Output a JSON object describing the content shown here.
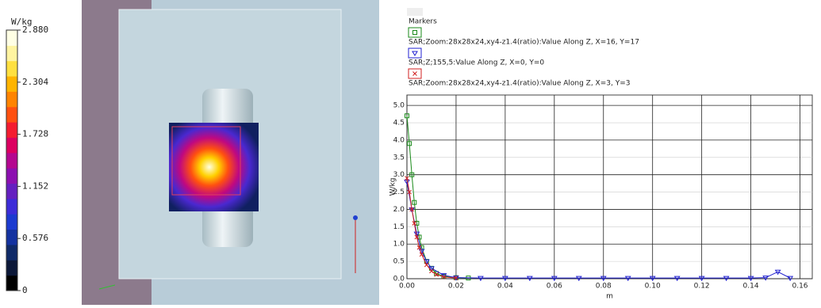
{
  "chart_data": [
    {
      "type": "colorbar",
      "unit": "W/kg",
      "ylim": [
        0,
        2.88
      ],
      "yticks": [
        0,
        {
          "value": 0.576,
          "label": "0.576"
        },
        {
          "value": 1.152,
          "label": "1.152"
        },
        {
          "value": 1.728,
          "label": "1.728"
        },
        {
          "value": 2.304,
          "label": "2.304"
        },
        {
          "value": 2.88,
          "label": "2.880"
        }
      ],
      "colors": [
        "#000000",
        "#0c1838",
        "#102a68",
        "#1432a0",
        "#1c3ad0",
        "#3c2cd8",
        "#6420c0",
        "#8c10b0",
        "#b40890",
        "#dc0060",
        "#f41c30",
        "#ff5010",
        "#ff8400",
        "#ffb400",
        "#ffe040",
        "#fff4a0",
        "#ffffe4"
      ]
    },
    {
      "type": "line",
      "legend_title": "Markers",
      "xlabel": "m",
      "ylabel": "W/kg",
      "grid": true,
      "xlim": [
        0,
        0.165
      ],
      "ylim": [
        0,
        5.3
      ],
      "xticks": [
        {
          "value": 0,
          "label": "0.00"
        },
        {
          "value": 0.02,
          "label": "0.02"
        },
        {
          "value": 0.04,
          "label": "0.04"
        },
        {
          "value": 0.06,
          "label": "0.06"
        },
        {
          "value": 0.08,
          "label": "0.08"
        },
        {
          "value": 0.1,
          "label": "0.10"
        },
        {
          "value": 0.12,
          "label": "0.12"
        },
        {
          "value": 0.14,
          "label": "0.14"
        },
        {
          "value": 0.16,
          "label": "0.16"
        }
      ],
      "yticks": [
        {
          "value": 0,
          "label": "0.0"
        },
        0.5,
        {
          "value": 1,
          "label": "1.0"
        },
        1.5,
        {
          "value": 2,
          "label": "2.0"
        },
        2.5,
        {
          "value": 3,
          "label": "3.0"
        },
        3.5,
        {
          "value": 4,
          "label": "4.0"
        },
        4.5,
        {
          "value": 5,
          "label": "5.0"
        }
      ],
      "series": [
        {
          "name": "SAR;Zoom:28x28x24,xy4-z1.4(ratio):Value Along Z, X=16, Y=17",
          "color": "#1a8a1a",
          "marker": "square",
          "x": [
            0,
            0.001,
            0.002,
            0.003,
            0.004,
            0.005,
            0.006,
            0.008,
            0.01,
            0.012,
            0.015,
            0.02,
            0.025
          ],
          "values": [
            4.7,
            3.9,
            3.0,
            2.2,
            1.6,
            1.2,
            0.9,
            0.5,
            0.3,
            0.15,
            0.07,
            0.03,
            0.02
          ]
        },
        {
          "name": "SAR;Z;155,5:Value Along Z, X=0, Y=0",
          "color": "#2020d0",
          "marker": "triangle",
          "x": [
            0,
            0.002,
            0.004,
            0.006,
            0.008,
            0.01,
            0.015,
            0.02,
            0.03,
            0.04,
            0.05,
            0.06,
            0.07,
            0.08,
            0.09,
            0.1,
            0.11,
            0.12,
            0.13,
            0.14,
            0.146,
            0.151,
            0.156
          ],
          "values": [
            2.8,
            2.0,
            1.3,
            0.8,
            0.5,
            0.3,
            0.1,
            0.03,
            0.02,
            0.02,
            0.02,
            0.02,
            0.02,
            0.02,
            0.02,
            0.02,
            0.02,
            0.02,
            0.02,
            0.02,
            0.03,
            0.2,
            0.02
          ]
        },
        {
          "name": "SAR;Zoom:28x28x24,xy4-z1.4(ratio):Value Along Z, X=3, Y=3",
          "color": "#d02020",
          "marker": "x",
          "x": [
            0,
            0.001,
            0.002,
            0.003,
            0.004,
            0.005,
            0.006,
            0.008,
            0.01,
            0.012,
            0.015,
            0.02
          ],
          "values": [
            2.9,
            2.5,
            2.0,
            1.6,
            1.2,
            0.9,
            0.7,
            0.4,
            0.22,
            0.12,
            0.05,
            0.02
          ]
        }
      ]
    }
  ]
}
